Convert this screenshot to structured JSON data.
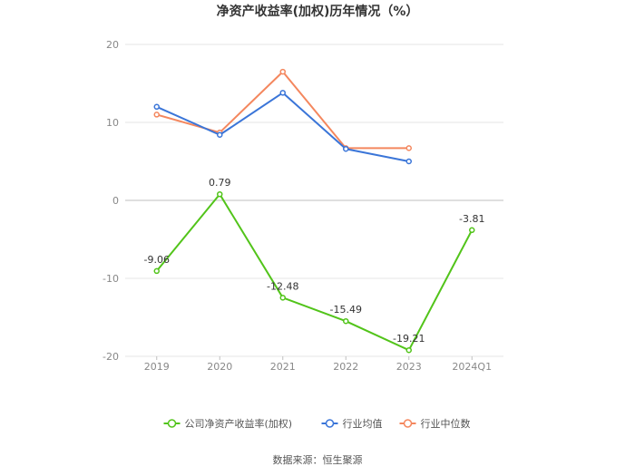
{
  "chart_data": {
    "type": "line",
    "title": "净资产收益率(加权)历年情况（%）",
    "categories": [
      "2019",
      "2020",
      "2021",
      "2022",
      "2023",
      "2024Q1"
    ],
    "ylim": [
      -20,
      20
    ],
    "yticks": [
      -20,
      -10,
      0,
      10,
      20
    ],
    "xlabel": "",
    "ylabel": "",
    "grid": true,
    "legend_position": "bottom",
    "series": [
      {
        "name": "公司净资产收益率(加权)",
        "color": "#52c41a",
        "values": [
          -9.06,
          0.79,
          -12.48,
          -15.49,
          -19.21,
          -3.81
        ],
        "labels": [
          "-9.06",
          "0.79",
          "-12.48",
          "-15.49",
          "-19.21",
          "-3.81"
        ]
      },
      {
        "name": "行业均值",
        "color": "#3a75d8",
        "values": [
          12.0,
          8.4,
          13.8,
          6.6,
          5.0,
          null
        ]
      },
      {
        "name": "行业中位数",
        "color": "#f4875e",
        "values": [
          11.0,
          8.7,
          16.5,
          6.7,
          6.7,
          null
        ]
      }
    ],
    "source": "数据来源：恒生聚源"
  }
}
